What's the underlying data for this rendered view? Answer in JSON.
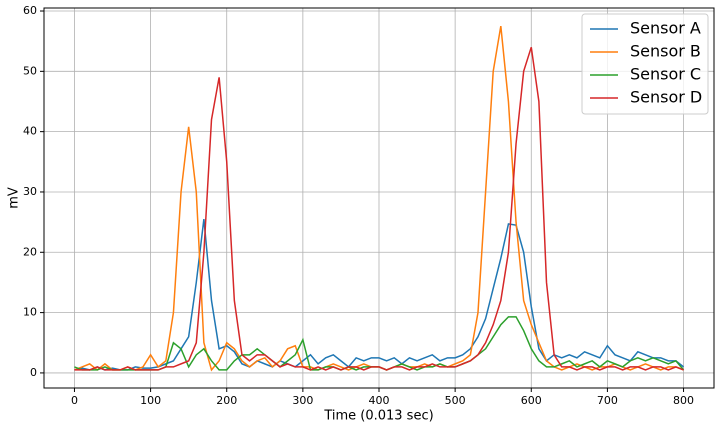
{
  "chart_data": {
    "type": "line",
    "x": [
      0,
      10,
      20,
      30,
      40,
      50,
      60,
      70,
      80,
      90,
      100,
      110,
      120,
      130,
      140,
      150,
      160,
      170,
      180,
      190,
      200,
      210,
      220,
      230,
      240,
      250,
      260,
      270,
      280,
      290,
      300,
      310,
      320,
      330,
      340,
      350,
      360,
      370,
      380,
      390,
      400,
      410,
      420,
      430,
      440,
      450,
      460,
      470,
      480,
      490,
      500,
      510,
      520,
      530,
      540,
      550,
      560,
      570,
      580,
      590,
      600,
      610,
      620,
      630,
      640,
      650,
      660,
      670,
      680,
      690,
      700,
      710,
      720,
      730,
      740,
      750,
      760,
      770,
      780,
      790,
      800
    ],
    "series": [
      {
        "name": "Sensor A",
        "color": "#1f77b4",
        "values": [
          0.5,
          0.8,
          0.5,
          1,
          0.5,
          0.8,
          0.5,
          0.5,
          1,
          0.8,
          0.8,
          1,
          1.5,
          2,
          4,
          6,
          15,
          25.5,
          12,
          4,
          4.5,
          3.5,
          1.5,
          1,
          2,
          1.5,
          1,
          2,
          1.5,
          1,
          2,
          3,
          1.5,
          2.5,
          3,
          2,
          1,
          2.5,
          2,
          2.5,
          2.5,
          2,
          2.5,
          1.5,
          2.5,
          2,
          2.5,
          3,
          2,
          2.5,
          2.5,
          3,
          4,
          6,
          9,
          14,
          19,
          24.7,
          24.5,
          20,
          11,
          4,
          2,
          3,
          2.5,
          3,
          2.5,
          3.5,
          3,
          2.5,
          4.5,
          3,
          2.5,
          2,
          3.5,
          3,
          2.5,
          2.5,
          2,
          2,
          1
        ]
      },
      {
        "name": "Sensor B",
        "color": "#ff7f0e",
        "values": [
          0.5,
          1,
          1.5,
          0.5,
          1.5,
          0.5,
          0.5,
          1,
          0.5,
          1,
          3,
          1,
          2,
          10,
          30,
          40.8,
          30,
          5,
          0.5,
          2,
          5,
          4,
          2,
          1,
          2,
          2.5,
          1,
          2,
          4,
          4.5,
          1,
          1,
          0.5,
          1,
          1.5,
          1,
          0.5,
          1,
          1.5,
          1,
          1,
          0.5,
          1,
          1.5,
          1,
          1,
          1.5,
          1,
          1.5,
          1,
          1.5,
          2,
          3,
          10,
          30,
          50,
          57.5,
          45,
          25,
          12,
          8,
          5,
          2,
          1,
          0.5,
          1,
          1.5,
          1,
          0.5,
          1,
          1,
          1.5,
          1,
          0.5,
          1,
          1.5,
          1,
          0.5,
          1,
          1,
          0.5
        ]
      },
      {
        "name": "Sensor C",
        "color": "#2ca02c",
        "values": [
          1,
          0.5,
          0.5,
          0.5,
          1,
          0.5,
          0.5,
          0.5,
          0.5,
          0.5,
          0.5,
          0.5,
          1,
          5,
          4,
          1,
          3,
          4,
          2,
          0.5,
          0.5,
          2,
          3,
          3,
          4,
          3,
          2,
          1,
          2,
          3,
          5.5,
          0.5,
          0.5,
          1,
          1,
          0.5,
          1,
          0.5,
          1,
          1,
          1,
          0.5,
          1,
          1.5,
          1,
          0.5,
          1,
          1,
          1.5,
          1,
          1,
          1.5,
          2,
          3,
          4,
          6,
          8,
          9.3,
          9.3,
          7,
          4,
          2,
          1,
          1,
          1.5,
          2,
          1,
          1.5,
          2,
          1,
          2,
          1.5,
          1,
          2,
          2.5,
          2,
          2.5,
          2,
          1.5,
          2,
          0.5
        ]
      },
      {
        "name": "Sensor D",
        "color": "#d62728",
        "values": [
          0.5,
          0.5,
          0.5,
          1,
          0.5,
          0.5,
          0.5,
          1,
          0.5,
          0.5,
          0.5,
          0.5,
          1,
          1,
          1.5,
          2,
          5,
          20,
          42,
          49,
          35,
          12,
          3,
          2,
          3,
          3,
          2,
          1,
          1.5,
          1,
          1,
          0.5,
          1,
          0.5,
          1,
          0.5,
          1,
          1,
          0.5,
          1,
          1,
          0.5,
          1,
          1,
          0.5,
          1,
          1,
          1.5,
          1,
          1,
          1,
          1.5,
          2,
          3,
          5,
          8,
          12,
          20,
          38,
          50,
          54,
          45,
          15,
          3,
          1,
          1,
          0.5,
          1,
          1,
          0.5,
          1,
          1,
          0.5,
          1,
          1,
          0.5,
          1,
          1,
          0.5,
          1,
          0.5
        ]
      }
    ],
    "x_label": "Time (0.013 sec)",
    "y_label": "mV",
    "xlim": [
      -40,
      840
    ],
    "ylim": [
      -2.5,
      60.5
    ],
    "xticks": [
      0,
      100,
      200,
      300,
      400,
      500,
      600,
      700,
      800
    ],
    "yticks": [
      0,
      10,
      20,
      30,
      40,
      50,
      60
    ],
    "grid": true,
    "legend": "upper right"
  }
}
